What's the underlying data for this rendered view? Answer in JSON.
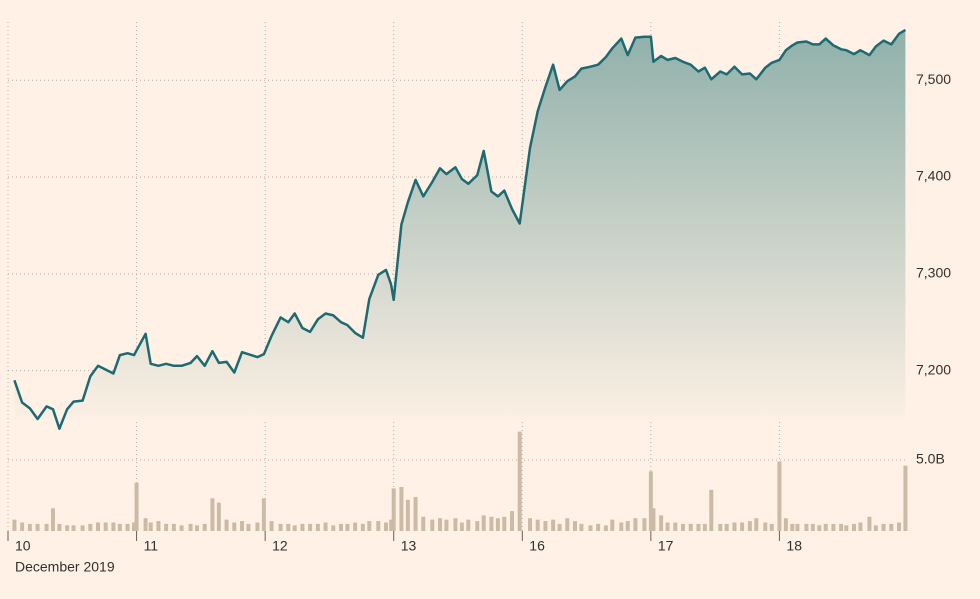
{
  "chart_data": {
    "type": "line",
    "xlabel": "December 2019",
    "x": [
      0.05,
      0.11,
      0.17,
      0.23,
      0.3,
      0.35,
      0.4,
      0.46,
      0.51,
      0.58,
      0.64,
      0.7,
      0.76,
      0.82,
      0.87,
      0.93,
      0.98,
      1.0,
      1.07,
      1.11,
      1.17,
      1.23,
      1.29,
      1.35,
      1.42,
      1.47,
      1.53,
      1.59,
      1.64,
      1.7,
      1.76,
      1.82,
      1.87,
      1.94,
      1.99,
      2.05,
      2.12,
      2.18,
      2.23,
      2.29,
      2.35,
      2.41,
      2.47,
      2.53,
      2.59,
      2.64,
      2.7,
      2.76,
      2.81,
      2.88,
      2.94,
      2.98,
      3.0,
      3.06,
      3.11,
      3.17,
      3.23,
      3.3,
      3.36,
      3.41,
      3.48,
      3.53,
      3.58,
      3.65,
      3.7,
      3.76,
      3.81,
      3.86,
      3.92,
      3.98,
      4.06,
      4.12,
      4.18,
      4.24,
      4.29,
      4.35,
      4.41,
      4.46,
      4.53,
      4.59,
      4.65,
      4.7,
      4.77,
      4.82,
      4.88,
      4.95,
      5.0,
      5.02,
      5.08,
      5.13,
      5.19,
      5.25,
      5.31,
      5.37,
      5.42,
      5.47,
      5.54,
      5.59,
      5.65,
      5.71,
      5.77,
      5.82,
      5.89,
      5.94,
      6.0,
      6.05,
      6.1,
      6.14,
      6.21,
      6.26,
      6.31,
      6.36,
      6.42,
      6.48,
      6.52,
      6.58,
      6.63,
      6.7,
      6.75,
      6.81,
      6.87,
      6.93,
      6.98
    ],
    "series": [
      {
        "color": "#1e6a72",
        "values": [
          7190,
          7167,
          7161,
          7150,
          7163,
          7160,
          7140,
          7160,
          7168,
          7169,
          7194,
          7205,
          7201,
          7197,
          7216,
          7218,
          7216,
          7221,
          7238,
          7207,
          7205,
          7207,
          7205,
          7205,
          7208,
          7215,
          7205,
          7220,
          7208,
          7209,
          7198,
          7219,
          7217,
          7214,
          7217,
          7236,
          7255,
          7250,
          7259,
          7244,
          7240,
          7253,
          7259,
          7257,
          7250,
          7247,
          7239,
          7234,
          7274,
          7299,
          7304,
          7289,
          7273,
          7351,
          7374,
          7397,
          7380,
          7395,
          7409,
          7403,
          7410,
          7398,
          7393,
          7402,
          7427,
          7385,
          7380,
          7386,
          7367,
          7352,
          7430,
          7468,
          7493,
          7516,
          7490,
          7499,
          7504,
          7512,
          7514,
          7516,
          7524,
          7533,
          7543,
          7526,
          7544,
          7545,
          7545,
          7519,
          7525,
          7521,
          7523,
          7519,
          7516,
          7509,
          7513,
          7501,
          7509,
          7506,
          7514,
          7506,
          7507,
          7501,
          7513,
          7518,
          7521,
          7531,
          7536,
          7539,
          7540,
          7537,
          7537,
          7543,
          7536,
          7532,
          7531,
          7527,
          7531,
          7526,
          7535,
          7541,
          7537,
          7548,
          7552
        ]
      },
      {
        "type": "bar",
        "axis": "y2",
        "color": "#cbbba6",
        "values": [
          0.8,
          0.6,
          0.5,
          0.5,
          0.5,
          1.6,
          0.5,
          0.4,
          0.4,
          0.4,
          0.5,
          0.6,
          0.6,
          0.6,
          0.5,
          0.5,
          0.6,
          3.4,
          0.9,
          0.6,
          0.7,
          0.5,
          0.5,
          0.4,
          0.5,
          0.4,
          0.5,
          2.3,
          2.0,
          0.8,
          0.6,
          0.7,
          0.5,
          0.6,
          2.3,
          0.7,
          0.5,
          0.5,
          0.4,
          0.5,
          0.5,
          0.5,
          0.6,
          0.4,
          0.5,
          0.5,
          0.6,
          0.5,
          0.7,
          0.7,
          0.6,
          0.8,
          3.0,
          3.1,
          2.2,
          2.4,
          1.0,
          0.8,
          0.9,
          0.8,
          0.9,
          0.6,
          0.8,
          0.7,
          1.1,
          1.0,
          0.9,
          1.0,
          1.4,
          7.0,
          0.9,
          0.8,
          0.7,
          0.8,
          0.5,
          0.9,
          0.7,
          0.5,
          0.4,
          0.5,
          0.4,
          0.8,
          0.6,
          0.7,
          0.9,
          0.9,
          4.2,
          1.6,
          1.1,
          0.6,
          0.6,
          0.5,
          0.5,
          0.5,
          0.5,
          2.9,
          0.5,
          0.5,
          0.6,
          0.6,
          0.7,
          0.9,
          0.6,
          0.5,
          4.9,
          0.9,
          0.5,
          0.5,
          0.5,
          0.5,
          0.4,
          0.5,
          0.5,
          0.5,
          0.4,
          0.5,
          0.6,
          1.0,
          0.4,
          0.5,
          0.5,
          0.6,
          4.6
        ]
      }
    ],
    "xlim": [
      0,
      7
    ],
    "xticks": [
      {
        "value": 0,
        "label": "10"
      },
      {
        "value": 1,
        "label": "11"
      },
      {
        "value": 2,
        "label": "12"
      },
      {
        "value": 3,
        "label": "13"
      },
      {
        "value": 4,
        "label": "16"
      },
      {
        "value": 5,
        "label": "17"
      },
      {
        "value": 6,
        "label": "18"
      }
    ],
    "ylim": [
      7150,
      7555
    ],
    "yticks": [
      {
        "value": 7200,
        "label": "7,200"
      },
      {
        "value": 7300,
        "label": "7,300"
      },
      {
        "value": 7400,
        "label": "7,400"
      },
      {
        "value": 7500,
        "label": "7,500"
      }
    ],
    "y2lim": [
      0,
      7.5
    ],
    "y2ticks": [
      {
        "value": 5,
        "label": "5.0B"
      }
    ],
    "grid": true
  }
}
